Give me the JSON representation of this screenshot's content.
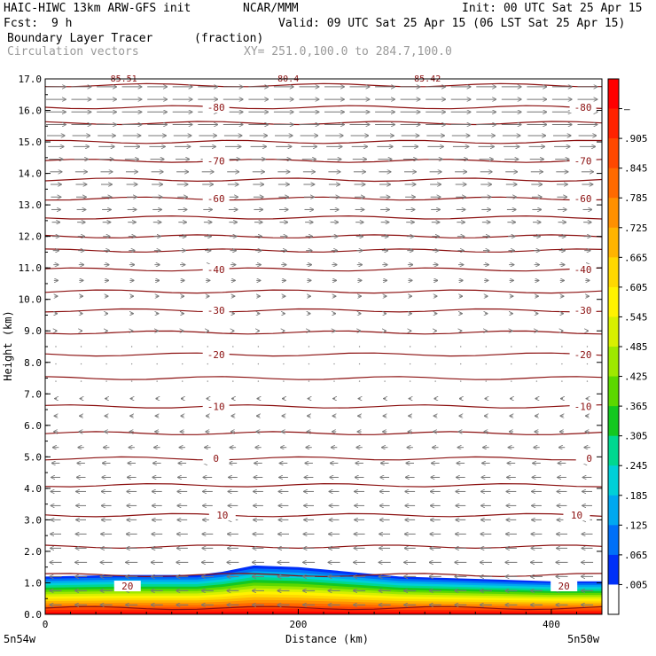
{
  "header": {
    "model": "HAIC-HIWC 13km ARW-GFS init",
    "org": "NCAR/MMM",
    "init": "Init: 00 UTC Sat 25 Apr 15",
    "fcst_label": "Fcst:",
    "fcst_value": "9 h",
    "valid": "Valid: 09 UTC Sat 25 Apr 15 (06 LST Sat 25 Apr 15)",
    "field_name": "Boundary Layer Tracer",
    "field_units": "(fraction)",
    "vector_name": "Circulation vectors",
    "xsec": "XY= 251.0,100.0 to 284.7,100.0"
  },
  "chart_data": {
    "type": "heatmap",
    "title": "Boundary Layer Tracer",
    "ylabel": "Height (km)",
    "xlabel": "Distance (km)",
    "ylim": [
      0,
      17
    ],
    "xlim": [
      0,
      440
    ],
    "yticks": [
      0.0,
      1.0,
      2.0,
      3.0,
      4.0,
      5.0,
      6.0,
      7.0,
      8.0,
      9.0,
      10.0,
      11.0,
      12.0,
      13.0,
      14.0,
      15.0,
      16.0,
      17.0
    ],
    "ytick_labels": [
      "0.0",
      "1.0",
      "2.0",
      "3.0",
      "4.0",
      "5.0",
      "6.0",
      "7.0",
      "8.0",
      "9.0",
      "10.0",
      "11.0",
      "12.0",
      "13.0",
      "14.0",
      "15.0",
      "16.0",
      "17.0"
    ],
    "xticks": [
      0,
      200,
      400
    ],
    "xtick_labels": [
      "0",
      "200",
      "400"
    ],
    "left_endpoint_label": "5n54w",
    "right_endpoint_label": "5n50w",
    "colorbar": {
      "labels": [
        "–",
        ".905",
        ".845",
        ".785",
        ".725",
        ".665",
        ".605",
        ".545",
        ".485",
        ".425",
        ".365",
        ".305",
        ".245",
        ".185",
        ".125",
        ".065",
        ".005"
      ],
      "colors": [
        "#ff0000",
        "#ff2200",
        "#ff4800",
        "#ff6a00",
        "#ff9000",
        "#ffb400",
        "#ffd800",
        "#fff200",
        "#d8f000",
        "#9ee800",
        "#5cd800",
        "#14c820",
        "#00d890",
        "#00d0d8",
        "#00a8f0",
        "#0070f8",
        "#0030f8",
        "#ffffff"
      ]
    },
    "tracer_layer": {
      "x_km": [
        0,
        60,
        120,
        140,
        165,
        200,
        240,
        280,
        320,
        360,
        400,
        440
      ],
      "top_km": [
        1.2,
        1.25,
        1.25,
        1.35,
        1.55,
        1.5,
        1.35,
        1.2,
        1.15,
        1.1,
        1.05,
        1.05
      ]
    },
    "isotherms": {
      "heights_km": [
        0.2,
        1.25,
        2.15,
        3.15,
        4.1,
        4.95,
        5.75,
        6.6,
        7.5,
        8.25,
        8.95,
        9.65,
        10.25,
        10.95,
        11.55,
        12.0,
        12.6,
        13.2,
        13.8,
        14.4,
        15.0,
        15.6,
        16.1,
        16.8
      ],
      "labels": [
        {
          "text": "20",
          "height_km": 0.9,
          "x_km": [
            65,
            410
          ]
        },
        {
          "text": "10",
          "height_km": 3.15,
          "x_km": [
            140,
            420
          ]
        },
        {
          "text": "0",
          "height_km": 4.95,
          "x_km": [
            135,
            430
          ]
        },
        {
          "text": "-10",
          "height_km": 6.6,
          "x_km": [
            135,
            425
          ]
        },
        {
          "text": "-20",
          "height_km": 8.25,
          "x_km": [
            135,
            425
          ]
        },
        {
          "text": "-30",
          "height_km": 9.65,
          "x_km": [
            135,
            425
          ]
        },
        {
          "text": "-40",
          "height_km": 10.95,
          "x_km": [
            135,
            425
          ]
        },
        {
          "text": "-60",
          "height_km": 13.2,
          "x_km": [
            135,
            425
          ]
        },
        {
          "text": "-70",
          "height_km": 14.4,
          "x_km": [
            135,
            425
          ]
        },
        {
          "text": "-80",
          "height_km": 16.1,
          "x_km": [
            135,
            425
          ]
        }
      ],
      "top_labels": [
        "-85.51",
        "-80.4",
        "-85.42"
      ]
    },
    "vectors": {
      "x_spacing_km": 20,
      "rows": [
        {
          "height_km": 16.75,
          "u": 1.0
        },
        {
          "height_km": 16.35,
          "u": 1.0
        },
        {
          "height_km": 15.95,
          "u": 1.0
        },
        {
          "height_km": 15.55,
          "u": 1.0
        },
        {
          "height_km": 15.2,
          "u": 0.9
        },
        {
          "height_km": 14.85,
          "u": 0.8
        },
        {
          "height_km": 14.45,
          "u": 0.7
        },
        {
          "height_km": 14.05,
          "u": 0.6
        },
        {
          "height_km": 13.65,
          "u": 0.55
        },
        {
          "height_km": 13.25,
          "u": 0.5
        },
        {
          "height_km": 12.85,
          "u": 0.45
        },
        {
          "height_km": 12.45,
          "u": 0.4
        },
        {
          "height_km": 12.0,
          "u": 0.35
        },
        {
          "height_km": 11.55,
          "u": 0.3
        },
        {
          "height_km": 11.1,
          "u": 0.25
        },
        {
          "height_km": 10.6,
          "u": 0.2
        },
        {
          "height_km": 10.1,
          "u": 0.15
        },
        {
          "height_km": 9.55,
          "u": 0.12
        },
        {
          "height_km": 9.0,
          "u": 0.08
        },
        {
          "height_km": 8.5,
          "u": 0.05
        },
        {
          "height_km": 7.95,
          "u": 0.04
        },
        {
          "height_km": 7.4,
          "u": -0.05
        },
        {
          "height_km": 6.85,
          "u": -0.1
        },
        {
          "height_km": 6.3,
          "u": -0.15
        },
        {
          "height_km": 5.8,
          "u": -0.2
        },
        {
          "height_km": 5.3,
          "u": -0.3
        },
        {
          "height_km": 4.8,
          "u": -0.4
        },
        {
          "height_km": 4.35,
          "u": -0.45
        },
        {
          "height_km": 3.9,
          "u": -0.5
        },
        {
          "height_km": 3.45,
          "u": -0.5
        },
        {
          "height_km": 3.0,
          "u": -0.5
        },
        {
          "height_km": 2.55,
          "u": -0.55
        },
        {
          "height_km": 2.1,
          "u": -0.55
        },
        {
          "height_km": 1.65,
          "u": -0.6
        },
        {
          "height_km": 1.2,
          "u": -0.6
        },
        {
          "height_km": 0.75,
          "u": -0.6
        },
        {
          "height_km": 0.3,
          "u": -0.6
        }
      ]
    }
  }
}
